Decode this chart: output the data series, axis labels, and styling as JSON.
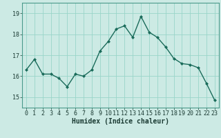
{
  "x": [
    0,
    1,
    2,
    3,
    4,
    5,
    6,
    7,
    8,
    9,
    10,
    11,
    12,
    13,
    14,
    15,
    16,
    17,
    18,
    19,
    20,
    21,
    22,
    23
  ],
  "y": [
    16.3,
    16.8,
    16.1,
    16.1,
    15.9,
    15.5,
    16.1,
    16.0,
    16.3,
    17.2,
    17.65,
    18.25,
    18.4,
    17.85,
    18.85,
    18.1,
    17.85,
    17.4,
    16.85,
    16.6,
    16.55,
    16.4,
    15.65,
    14.85
  ],
  "line_color": "#1a6b5a",
  "marker": "D",
  "marker_size": 2.0,
  "bg_color": "#cceae4",
  "grid_color": "#99d5c9",
  "xlabel": "Humidex (Indice chaleur)",
  "ylim": [
    14.5,
    19.5
  ],
  "yticks": [
    15,
    16,
    17,
    18,
    19
  ],
  "xticks": [
    0,
    1,
    2,
    3,
    4,
    5,
    6,
    7,
    8,
    9,
    10,
    11,
    12,
    13,
    14,
    15,
    16,
    17,
    18,
    19,
    20,
    21,
    22,
    23
  ],
  "linewidth": 1.0,
  "tick_fontsize": 6.0,
  "xlabel_fontsize": 7.0,
  "spine_color": "#4a9a8a"
}
